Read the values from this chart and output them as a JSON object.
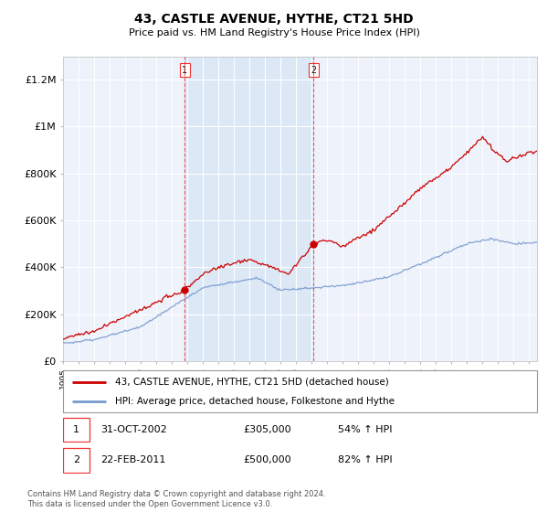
{
  "title": "43, CASTLE AVENUE, HYTHE, CT21 5HD",
  "subtitle": "Price paid vs. HM Land Registry's House Price Index (HPI)",
  "ylim": [
    0,
    1300000
  ],
  "yticks": [
    0,
    200000,
    400000,
    600000,
    800000,
    1000000,
    1200000
  ],
  "ytick_labels": [
    "£0",
    "£200K",
    "£400K",
    "£600K",
    "£800K",
    "£1M",
    "£1.2M"
  ],
  "background_color": "#ffffff",
  "plot_bg_color": "#eef2fb",
  "grid_color": "#ffffff",
  "sale1": {
    "date_x": 2002.83,
    "price": 305000,
    "label": "1",
    "date_str": "31-OCT-2002",
    "price_str": "£305,000",
    "hpi_str": "54% ↑ HPI"
  },
  "sale2": {
    "date_x": 2011.13,
    "price": 500000,
    "label": "2",
    "date_str": "22-FEB-2011",
    "price_str": "£500,000",
    "hpi_str": "82% ↑ HPI"
  },
  "shade_color": "#dce8f5",
  "vline_color": "#ee3333",
  "legend_label_red": "43, CASTLE AVENUE, HYTHE, CT21 5HD (detached house)",
  "legend_label_blue": "HPI: Average price, detached house, Folkestone and Hythe",
  "footnote": "Contains HM Land Registry data © Crown copyright and database right 2024.\nThis data is licensed under the Open Government Licence v3.0.",
  "red_color": "#cc0000",
  "blue_color": "#7799cc",
  "xmin": 1995,
  "xmax": 2025.5,
  "hatch_start": 2024.3
}
